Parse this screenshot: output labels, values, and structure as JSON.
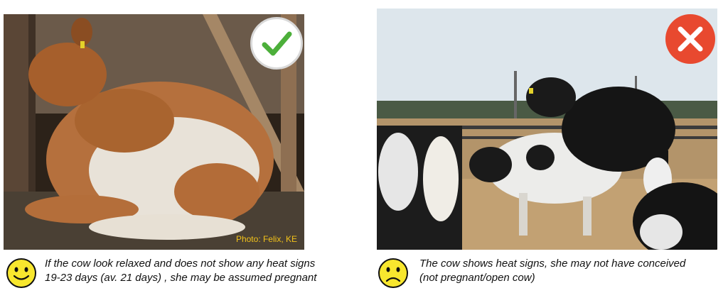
{
  "left": {
    "photo_credit": "Photo: Felix, KE",
    "caption_line1": "If the cow look relaxed and does not show any heat signs",
    "caption_line2": "19-23 days (av. 21 days) , she may be assumed pregnant",
    "badge_icon": "checkmark-icon",
    "face_icon": "smiley-face-icon",
    "badge_color": "#4caf3a"
  },
  "right": {
    "caption_line1": "The cow shows heat signs, she may not have conceived",
    "caption_line2": "(not pregnant/open cow)",
    "badge_icon": "x-icon",
    "face_icon": "sad-face-icon",
    "badge_color": "#e8492f"
  }
}
